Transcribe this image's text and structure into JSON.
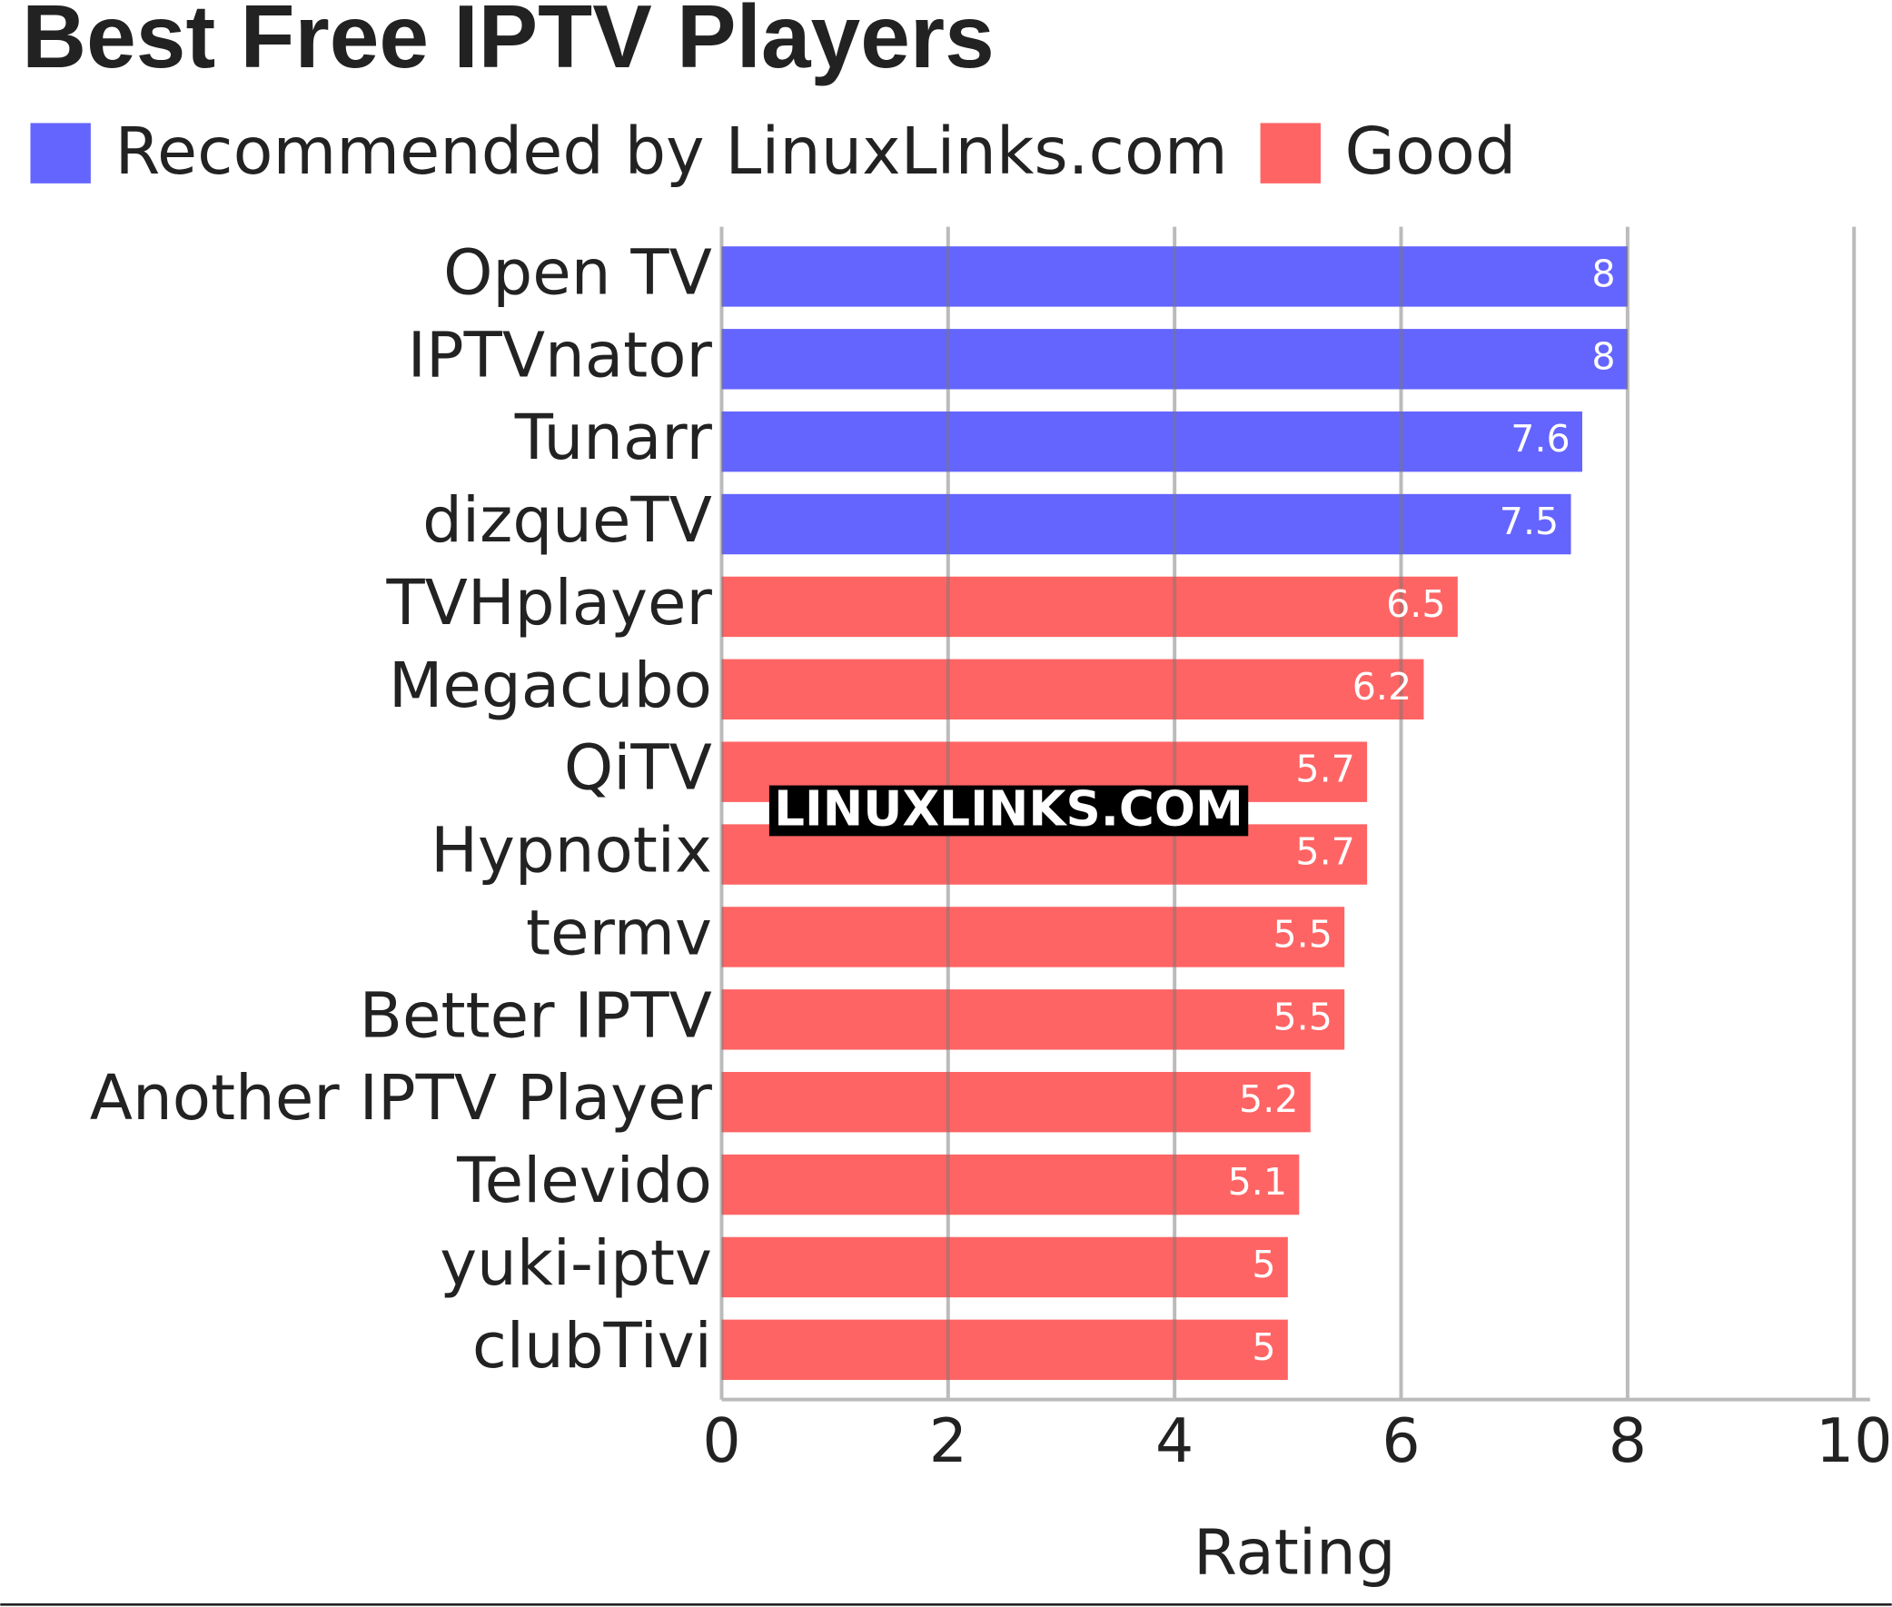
{
  "chart_data": {
    "type": "bar",
    "orientation": "horizontal",
    "title": "Best Free IPTV Players",
    "x_label": "Rating",
    "watermark": "LINUXLINKS.COM",
    "categories": [
      "Open TV",
      "IPTVnator",
      "Tunarr",
      "dizqueTV",
      "TVHplayer",
      "Megacubo",
      "QiTV",
      "Hypnotix",
      "termv",
      "Better IPTV",
      "Another IPTV Player",
      "Televido",
      "yuki-iptv",
      "clubTivi"
    ],
    "series": [
      {
        "name": "Recommended by LinuxLinks.com",
        "color": "#6464ff",
        "values": [
          8,
          8,
          7.6,
          7.5,
          null,
          null,
          null,
          null,
          null,
          null,
          null,
          null,
          null,
          null
        ]
      },
      {
        "name": "Good",
        "color": "#ff6464",
        "values": [
          null,
          null,
          null,
          null,
          6.5,
          6.2,
          5.7,
          5.7,
          5.5,
          5.5,
          5.2,
          5.1,
          5,
          5
        ]
      }
    ],
    "xlim": [
      0,
      10
    ],
    "xticks": [
      0,
      2,
      4,
      6,
      8,
      10
    ],
    "grid": true,
    "legend": "top-left"
  }
}
